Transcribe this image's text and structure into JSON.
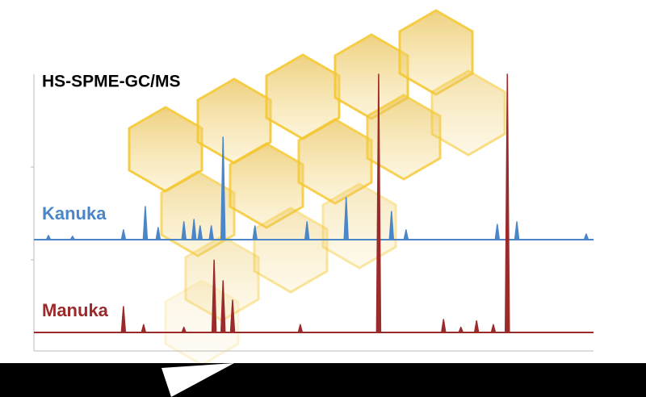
{
  "chart_data": {
    "type": "chromatogram",
    "title": "HS-SPME-GC/MS",
    "series": [
      {
        "name": "Kanuka",
        "color": "#4a86c8",
        "x": [
          2.6,
          6.9,
          16.0,
          19.9,
          22.2,
          26.8,
          28.6,
          29.7,
          31.7,
          33.8,
          39.5,
          48.8,
          55.8,
          63.9,
          66.5,
          82.8,
          86.3,
          98.7
        ],
        "values": [
          1.6,
          1.3,
          3.8,
          12.8,
          4.7,
          6.9,
          7.8,
          5.3,
          5.3,
          39.7,
          5.3,
          6.9,
          16.3,
          10.9,
          3.8,
          5.9,
          6.9,
          2.2
        ]
      },
      {
        "name": "Manuka",
        "color": "#9b2a2a",
        "x": [
          16.0,
          19.6,
          26.8,
          32.2,
          33.8,
          35.5,
          47.6,
          61.6,
          73.2,
          76.3,
          79.1,
          82.1,
          84.6
        ],
        "values": [
          10,
          3,
          2,
          28,
          20,
          12.5,
          3,
          100,
          5,
          2,
          4.5,
          3,
          100
        ]
      }
    ]
  }
}
